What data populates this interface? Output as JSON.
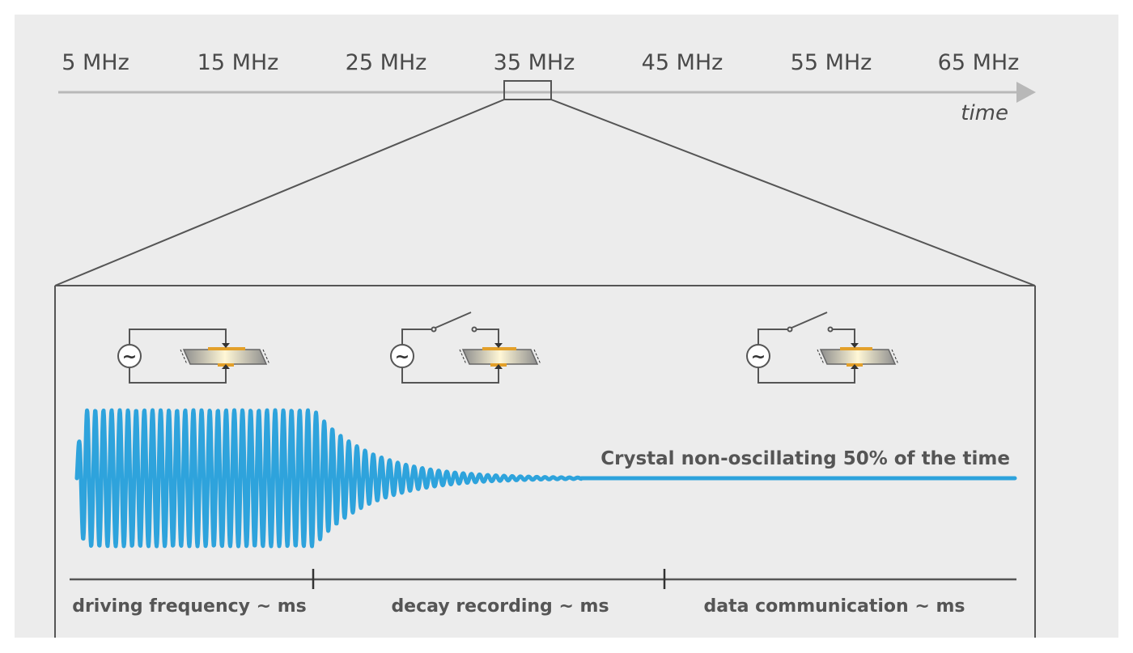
{
  "frequency_axis": {
    "labels": [
      "5 MHz",
      "15 MHz",
      "25 MHz",
      "35 MHz",
      "45 MHz",
      "55 MHz",
      "65 MHz"
    ],
    "axis_label": "time"
  },
  "signal_note": "Crystal non-oscillating 50% of the time",
  "phases": [
    {
      "label": "driving frequency ~ ms"
    },
    {
      "label": "decay recording ~ ms"
    },
    {
      "label": "data communication ~ ms"
    }
  ],
  "circuits": [
    {
      "name": "circuit-driving",
      "switch": "closed"
    },
    {
      "name": "circuit-decay",
      "switch": "open"
    },
    {
      "name": "circuit-communication",
      "switch": "open"
    }
  ],
  "colors": {
    "background": "#ececec",
    "signal": "#2ea3dc",
    "axis": "#b8b8b8",
    "lines": "#555555",
    "electrode": "#e3a02a",
    "crystal": "#9a9a9a"
  }
}
